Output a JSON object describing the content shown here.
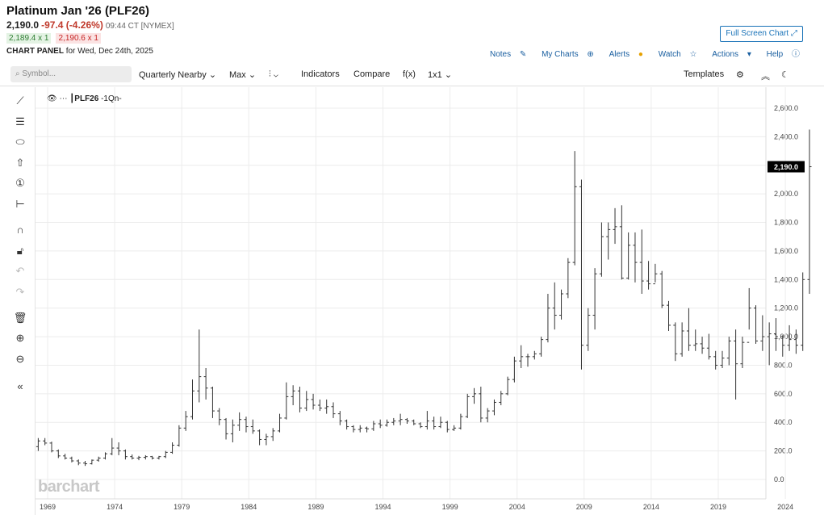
{
  "header": {
    "title": "Platinum Jan '26 (PLF26)",
    "last": "2,190.0",
    "change": "-97.4 (-4.26%)",
    "time": "09:44 CT [NYMEX]",
    "bid": "2,189.4 x 1",
    "ask": "2,190.6 x 1",
    "panel_label": "CHART PANEL",
    "panel_date": "for Wed, Dec 24th, 2025",
    "fullscreen": "Full Screen Chart",
    "links": [
      "Notes",
      "My Charts",
      "Alerts",
      "Watch",
      "Actions",
      "Help"
    ]
  },
  "toolbar": {
    "search_placeholder": "Symbol...",
    "period": "Quarterly Nearby",
    "range": "Max",
    "indicators": "Indicators",
    "compare": "Compare",
    "fx": "f(x)",
    "layout": "1x1",
    "templates": "Templates"
  },
  "legend": {
    "symbol": "PLF26",
    "interval": "-1Qn-"
  },
  "logo": "barchart",
  "colors": {
    "accent": "#1a73b8",
    "down": "#c0392b",
    "bars": "#333333"
  },
  "chart_data": {
    "type": "bar",
    "style": "ohlc",
    "ylim": [
      -100,
      2700
    ],
    "yticks": [
      0,
      200,
      400,
      600,
      800,
      1000,
      1200,
      1400,
      1600,
      1800,
      2000,
      2200,
      2400,
      2600
    ],
    "ytick_labels": [
      "0.0",
      "200.0",
      "400.0",
      "600.0",
      "800.0",
      "1,000.0",
      "1,200.0",
      "1,400.0",
      "1,600.0",
      "1,800.0",
      "2,000.0",
      "2,200.0",
      "2,400.0",
      "2,600.0"
    ],
    "xticks": [
      1969,
      1974,
      1979,
      1984,
      1989,
      1994,
      1999,
      2004,
      2009,
      2014,
      2019,
      2024
    ],
    "xlim": [
      1968.2,
      2026.3
    ],
    "last_price": 2190.0,
    "last_price_label": "2,190.0",
    "ohlc_keys": [
      "t",
      "open",
      "high",
      "low",
      "close"
    ],
    "bars": [
      [
        1968.3,
        230,
        290,
        200,
        270
      ],
      [
        1968.8,
        270,
        290,
        240,
        255
      ],
      [
        1969.3,
        255,
        265,
        190,
        200
      ],
      [
        1969.8,
        200,
        210,
        150,
        165
      ],
      [
        1970.3,
        165,
        180,
        140,
        150
      ],
      [
        1970.8,
        150,
        160,
        120,
        130
      ],
      [
        1971.3,
        130,
        140,
        100,
        115
      ],
      [
        1971.8,
        115,
        130,
        95,
        110
      ],
      [
        1972.3,
        110,
        140,
        105,
        135
      ],
      [
        1972.8,
        135,
        160,
        125,
        150
      ],
      [
        1973.3,
        150,
        190,
        140,
        180
      ],
      [
        1973.8,
        180,
        290,
        170,
        220
      ],
      [
        1974.3,
        220,
        260,
        170,
        200
      ],
      [
        1974.8,
        200,
        210,
        140,
        160
      ],
      [
        1975.3,
        160,
        175,
        140,
        150
      ],
      [
        1975.8,
        150,
        165,
        135,
        155
      ],
      [
        1976.3,
        155,
        170,
        140,
        160
      ],
      [
        1976.8,
        160,
        165,
        140,
        150
      ],
      [
        1977.3,
        150,
        165,
        140,
        160
      ],
      [
        1977.8,
        160,
        200,
        150,
        190
      ],
      [
        1978.3,
        190,
        260,
        180,
        240
      ],
      [
        1978.8,
        240,
        380,
        230,
        360
      ],
      [
        1979.3,
        360,
        480,
        340,
        440
      ],
      [
        1979.8,
        440,
        700,
        420,
        620
      ],
      [
        1980.3,
        620,
        1050,
        540,
        720
      ],
      [
        1980.8,
        720,
        780,
        560,
        640
      ],
      [
        1981.3,
        640,
        650,
        430,
        480
      ],
      [
        1981.8,
        480,
        500,
        380,
        420
      ],
      [
        1982.3,
        420,
        430,
        280,
        320
      ],
      [
        1982.8,
        320,
        420,
        260,
        380
      ],
      [
        1983.3,
        380,
        470,
        340,
        420
      ],
      [
        1983.8,
        420,
        440,
        330,
        370
      ],
      [
        1984.3,
        370,
        420,
        320,
        340
      ],
      [
        1984.8,
        340,
        350,
        240,
        280
      ],
      [
        1985.3,
        280,
        320,
        240,
        300
      ],
      [
        1985.8,
        300,
        360,
        270,
        340
      ],
      [
        1986.3,
        340,
        460,
        330,
        430
      ],
      [
        1986.8,
        430,
        680,
        420,
        580
      ],
      [
        1987.3,
        580,
        660,
        520,
        620
      ],
      [
        1987.8,
        620,
        650,
        470,
        500
      ],
      [
        1988.3,
        500,
        620,
        480,
        560
      ],
      [
        1988.8,
        560,
        600,
        490,
        520
      ],
      [
        1989.3,
        520,
        560,
        480,
        500
      ],
      [
        1989.8,
        500,
        560,
        460,
        510
      ],
      [
        1990.3,
        510,
        540,
        430,
        460
      ],
      [
        1990.8,
        460,
        480,
        380,
        410
      ],
      [
        1991.3,
        410,
        420,
        350,
        370
      ],
      [
        1991.8,
        370,
        380,
        330,
        350
      ],
      [
        1992.3,
        350,
        380,
        330,
        360
      ],
      [
        1992.8,
        360,
        370,
        330,
        355
      ],
      [
        1993.3,
        355,
        410,
        340,
        390
      ],
      [
        1993.8,
        390,
        420,
        360,
        380
      ],
      [
        1994.3,
        380,
        420,
        370,
        400
      ],
      [
        1994.8,
        400,
        430,
        380,
        410
      ],
      [
        1995.3,
        410,
        460,
        380,
        420
      ],
      [
        1995.8,
        420,
        430,
        390,
        410
      ],
      [
        1996.3,
        410,
        420,
        380,
        390
      ],
      [
        1996.8,
        390,
        400,
        360,
        370
      ],
      [
        1997.3,
        370,
        480,
        350,
        410
      ],
      [
        1997.8,
        410,
        440,
        350,
        370
      ],
      [
        1998.3,
        370,
        440,
        360,
        400
      ],
      [
        1998.8,
        400,
        410,
        330,
        350
      ],
      [
        1999.3,
        350,
        380,
        340,
        360
      ],
      [
        1999.8,
        360,
        460,
        350,
        440
      ],
      [
        2000.3,
        440,
        600,
        430,
        580
      ],
      [
        2000.8,
        580,
        640,
        530,
        600
      ],
      [
        2001.3,
        600,
        650,
        400,
        430
      ],
      [
        2001.8,
        430,
        500,
        400,
        480
      ],
      [
        2002.3,
        480,
        560,
        450,
        540
      ],
      [
        2002.8,
        540,
        620,
        520,
        600
      ],
      [
        2003.3,
        600,
        720,
        590,
        700
      ],
      [
        2003.8,
        700,
        860,
        680,
        830
      ],
      [
        2004.3,
        830,
        940,
        780,
        860
      ],
      [
        2004.8,
        860,
        880,
        790,
        860
      ],
      [
        2005.3,
        860,
        900,
        840,
        880
      ],
      [
        2005.8,
        880,
        1000,
        860,
        980
      ],
      [
        2006.3,
        980,
        1300,
        960,
        1200
      ],
      [
        2006.8,
        1200,
        1380,
        1050,
        1150
      ],
      [
        2007.3,
        1150,
        1330,
        1120,
        1300
      ],
      [
        2007.8,
        1300,
        1550,
        1270,
        1520
      ],
      [
        2008.3,
        1520,
        2300,
        1500,
        2050
      ],
      [
        2008.8,
        2050,
        2100,
        770,
        940
      ],
      [
        2009.3,
        940,
        1200,
        900,
        1150
      ],
      [
        2009.8,
        1150,
        1480,
        1050,
        1440
      ],
      [
        2010.3,
        1440,
        1800,
        1420,
        1700
      ],
      [
        2010.8,
        1700,
        1800,
        1540,
        1750
      ],
      [
        2011.3,
        1750,
        1900,
        1650,
        1770
      ],
      [
        2011.8,
        1770,
        1920,
        1400,
        1410
      ],
      [
        2012.3,
        1410,
        1730,
        1400,
        1640
      ],
      [
        2012.8,
        1640,
        1730,
        1380,
        1520
      ],
      [
        2013.3,
        1520,
        1750,
        1300,
        1390
      ],
      [
        2013.8,
        1390,
        1530,
        1330,
        1370
      ],
      [
        2014.3,
        1370,
        1510,
        1380,
        1440
      ],
      [
        2014.8,
        1440,
        1460,
        1200,
        1220
      ],
      [
        2015.3,
        1220,
        1250,
        1040,
        1080
      ],
      [
        2015.8,
        1080,
        1100,
        830,
        880
      ],
      [
        2016.3,
        880,
        1100,
        860,
        1040
      ],
      [
        2016.8,
        1040,
        1200,
        900,
        940
      ],
      [
        2017.3,
        940,
        1050,
        900,
        950
      ],
      [
        2017.8,
        950,
        1000,
        880,
        920
      ],
      [
        2018.3,
        920,
        1020,
        840,
        860
      ],
      [
        2018.8,
        860,
        900,
        770,
        800
      ],
      [
        2019.3,
        800,
        900,
        780,
        850
      ],
      [
        2019.8,
        850,
        1000,
        800,
        970
      ],
      [
        2020.3,
        970,
        1050,
        560,
        810
      ],
      [
        2020.8,
        810,
        1000,
        780,
        960
      ],
      [
        2021.3,
        960,
        1340,
        1050,
        1200
      ],
      [
        2021.8,
        1200,
        1220,
        950,
        970
      ],
      [
        2022.3,
        970,
        1150,
        900,
        1000
      ],
      [
        2022.8,
        1000,
        1100,
        800,
        1020
      ],
      [
        2023.3,
        1020,
        1130,
        900,
        1000
      ],
      [
        2023.8,
        1000,
        1010,
        860,
        940
      ],
      [
        2024.3,
        940,
        1080,
        900,
        980
      ],
      [
        2024.8,
        980,
        1050,
        880,
        940
      ],
      [
        2025.3,
        940,
        1450,
        900,
        1400
      ],
      [
        2025.8,
        1400,
        2450,
        1300,
        2190
      ]
    ]
  }
}
